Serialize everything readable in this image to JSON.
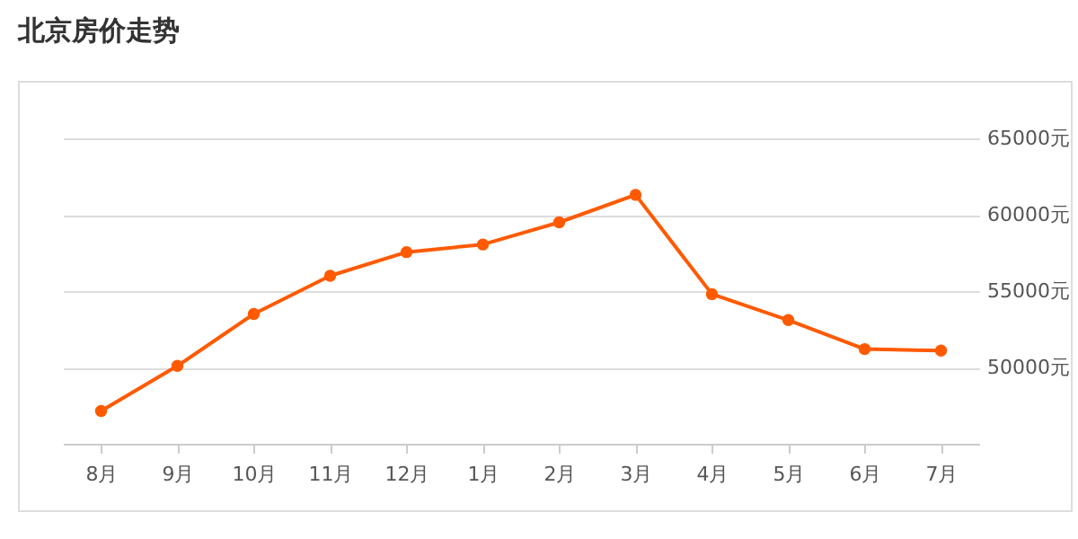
{
  "chart_data": {
    "type": "line",
    "title": "北京房价走势",
    "categories": [
      "8月",
      "9月",
      "10月",
      "11月",
      "12月",
      "1月",
      "2月",
      "3月",
      "4月",
      "5月",
      "6月",
      "7月"
    ],
    "series": [
      {
        "color": "#ff5a00",
        "values": [
          47150,
          50100,
          53500,
          56000,
          57550,
          58050,
          59500,
          61300,
          54800,
          53100,
          51200,
          51100
        ]
      }
    ],
    "ylim": [
      45000,
      65000
    ],
    "yticks": [
      {
        "value": 50000,
        "label": "50000元"
      },
      {
        "value": 55000,
        "label": "55000元"
      },
      {
        "value": 60000,
        "label": "60000元"
      },
      {
        "value": 65000,
        "label": "65000元"
      }
    ],
    "grid": "y",
    "marker": "circle",
    "line_style": "solid",
    "legend": false
  }
}
